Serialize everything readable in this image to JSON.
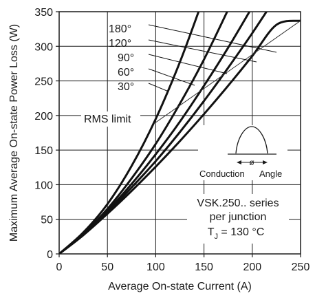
{
  "chart_data": {
    "type": "line",
    "xlabel": "Average On-state Current (A)",
    "ylabel": "Maximum Average On-state Power Loss (W)",
    "xlim": [
      0,
      250
    ],
    "ylim": [
      0,
      350
    ],
    "xticks": [
      0,
      50,
      100,
      150,
      200,
      250
    ],
    "yticks": [
      0,
      50,
      100,
      150,
      200,
      250,
      300,
      350
    ],
    "grid": true,
    "series": [
      {
        "name": "180°",
        "x": [
          0,
          25,
          50,
          75,
          100,
          125,
          150,
          175,
          200,
          225,
          250
        ],
        "y": [
          0,
          27,
          58,
          91,
          126,
          163,
          202,
          243,
          286,
          331,
          337
        ]
      },
      {
        "name": "120°",
        "x": [
          0,
          25,
          50,
          75,
          100,
          125,
          150,
          175,
          200,
          225,
          235
        ],
        "y": [
          0,
          28,
          60,
          96,
          134,
          176,
          221,
          269,
          319,
          372,
          393
        ]
      },
      {
        "name": "90°",
        "x": [
          0,
          25,
          50,
          75,
          100,
          125,
          150,
          175,
          200,
          215
        ],
        "y": [
          0,
          28,
          62,
          101,
          144,
          191,
          243,
          298,
          357,
          394
        ]
      },
      {
        "name": "60°",
        "x": [
          0,
          25,
          50,
          75,
          100,
          125,
          150,
          175,
          188
        ],
        "y": [
          0,
          29,
          65,
          109,
          159,
          217,
          281,
          353,
          393
        ]
      },
      {
        "name": "30°",
        "x": [
          0,
          25,
          50,
          75,
          100,
          125,
          147
        ],
        "y": [
          0,
          31,
          72,
          127,
          195,
          277,
          360
        ]
      }
    ],
    "rms_limit": {
      "label": "RMS limit",
      "x": [
        100,
        250
      ],
      "y": [
        190,
        337
      ]
    },
    "inset": {
      "label_phi": "ø",
      "conduction_label": "Conduction",
      "angle_label": "Angle"
    },
    "annotation": {
      "line1": "VSK.250.. series",
      "line2": "per junction",
      "tj_prefix": "T",
      "tj_sub": "J",
      "tj_suffix": " = 130 °C"
    }
  }
}
